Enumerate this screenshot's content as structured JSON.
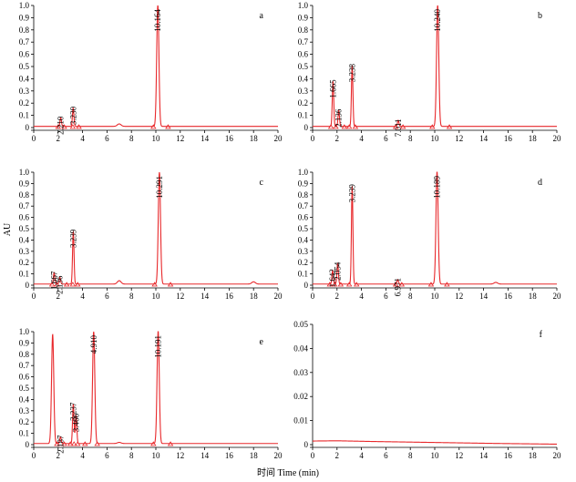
{
  "figure": {
    "ylabel": "AU",
    "xlabel": "时间 Time (min)"
  },
  "chart_data": [
    {
      "panel": "a",
      "type": "line",
      "xlim": [
        0,
        20
      ],
      "ylim": [
        0,
        1.0
      ],
      "xticks": [
        0,
        2,
        4,
        6,
        8,
        10,
        12,
        14,
        16,
        18,
        20
      ],
      "yticks": [
        0,
        0.1,
        0.2,
        0.3,
        0.4,
        0.5,
        0.6,
        0.7,
        0.8,
        0.9,
        1.0
      ],
      "ytick_labels": [
        "0",
        "0.1",
        "0.2",
        "0.3",
        "0.4",
        "0.5",
        "0.6",
        "0.7",
        "0.8",
        "0.9",
        "1.0"
      ],
      "baseline": 0.01,
      "peaks": [
        {
          "label": "2.210",
          "rt": 2.21,
          "height": 0.07
        },
        {
          "label": "3.230",
          "rt": 3.23,
          "height": 0.15
        },
        {
          "label": "10.164",
          "rt": 10.16,
          "height": 1.0
        }
      ],
      "small_bumps": [
        {
          "rt": 7.0,
          "height": 0.02
        }
      ],
      "markers": [
        2.0,
        2.5,
        3.2,
        3.7,
        9.8,
        11.0
      ]
    },
    {
      "panel": "b",
      "type": "line",
      "xlim": [
        0,
        20
      ],
      "ylim": [
        0,
        1.0
      ],
      "xticks": [
        0,
        2,
        4,
        6,
        8,
        10,
        12,
        14,
        16,
        18,
        20
      ],
      "yticks": [
        0,
        0.1,
        0.2,
        0.3,
        0.4,
        0.5,
        0.6,
        0.7,
        0.8,
        0.9,
        1.0
      ],
      "ytick_labels": [
        "0",
        "0.1",
        "0.2",
        "0.3",
        "0.4",
        "0.5",
        "0.6",
        "0.7",
        "0.8",
        "0.9",
        "1.0"
      ],
      "baseline": 0.01,
      "peaks": [
        {
          "label": "1.665",
          "rt": 1.67,
          "height": 0.37
        },
        {
          "label": "2.136",
          "rt": 2.14,
          "height": 0.13
        },
        {
          "label": "3.238",
          "rt": 3.24,
          "height": 0.5
        },
        {
          "label": "7.011",
          "rt": 7.01,
          "height": 0.05
        },
        {
          "label": "10.240",
          "rt": 10.24,
          "height": 1.0
        }
      ],
      "small_bumps": [],
      "markers": [
        1.5,
        1.9,
        2.6,
        3.0,
        3.5,
        6.8,
        7.4,
        9.8,
        11.2
      ]
    },
    {
      "panel": "c",
      "type": "line",
      "xlim": [
        0,
        20
      ],
      "ylim": [
        0,
        1.0
      ],
      "xticks": [
        0,
        2,
        4,
        6,
        8,
        10,
        12,
        14,
        16,
        18,
        20
      ],
      "yticks": [
        0,
        0.1,
        0.2,
        0.3,
        0.4,
        0.5,
        0.6,
        0.7,
        0.8,
        0.9,
        1.0
      ],
      "ytick_labels": [
        "0",
        "0.1",
        "0.2",
        "0.3",
        "0.4",
        "0.5",
        "0.6",
        "0.7",
        "0.8",
        "0.9",
        "1.0"
      ],
      "baseline": 0.01,
      "peaks": [
        {
          "label": "1.667",
          "rt": 1.67,
          "height": 0.1
        },
        {
          "label": "2.136",
          "rt": 2.14,
          "height": 0.06
        },
        {
          "label": "3.239",
          "rt": 3.24,
          "height": 0.47
        },
        {
          "label": "10.291",
          "rt": 10.29,
          "height": 1.0
        }
      ],
      "small_bumps": [
        {
          "rt": 7.0,
          "height": 0.03
        },
        {
          "rt": 18.0,
          "height": 0.02
        }
      ],
      "markers": [
        1.5,
        1.9,
        2.7,
        3.2,
        3.6,
        9.9,
        11.2
      ]
    },
    {
      "panel": "d",
      "type": "line",
      "xlim": [
        0,
        20
      ],
      "ylim": [
        0,
        1.0
      ],
      "xticks": [
        0,
        2,
        4,
        6,
        8,
        10,
        12,
        14,
        16,
        18,
        20
      ],
      "yticks": [
        0,
        0.1,
        0.2,
        0.3,
        0.4,
        0.5,
        0.6,
        0.7,
        0.8,
        0.9,
        1.0
      ],
      "ytick_labels": [
        "0",
        "0.1",
        "0.2",
        "0.3",
        "0.4",
        "0.5",
        "0.6",
        "0.7",
        "0.8",
        "0.9",
        "1.0"
      ],
      "baseline": 0.01,
      "peaks": [
        {
          "label": "1.642",
          "rt": 1.64,
          "height": 0.12
        },
        {
          "label": "2.054",
          "rt": 2.05,
          "height": 0.18
        },
        {
          "label": "3.239",
          "rt": 3.24,
          "height": 0.87
        },
        {
          "label": "6.971",
          "rt": 6.97,
          "height": 0.04
        },
        {
          "label": "10.189",
          "rt": 10.19,
          "height": 1.0
        }
      ],
      "small_bumps": [
        {
          "rt": 15.0,
          "height": 0.015
        }
      ],
      "markers": [
        1.4,
        1.8,
        2.3,
        3.0,
        3.6,
        6.8,
        7.3,
        9.7,
        11.0
      ]
    },
    {
      "panel": "e",
      "type": "line",
      "xlim": [
        0,
        20
      ],
      "ylim": [
        0,
        1.0
      ],
      "xticks": [
        0,
        2,
        4,
        6,
        8,
        10,
        12,
        14,
        16,
        18,
        20
      ],
      "yticks": [
        0,
        0.1,
        0.2,
        0.3,
        0.4,
        0.5,
        0.6,
        0.7,
        0.8,
        0.9,
        1.0
      ],
      "ytick_labels": [
        "0",
        "0.1",
        "0.2",
        "0.3",
        "0.4",
        "0.5",
        "0.6",
        "0.7",
        "0.8",
        "0.9",
        "1.0"
      ],
      "baseline": 0.01,
      "peaks": [
        {
          "label": "",
          "rt": 1.55,
          "height": 0.97
        },
        {
          "label": "2.187",
          "rt": 2.19,
          "height": 0.06
        },
        {
          "label": "3.237",
          "rt": 3.24,
          "height": 0.35
        },
        {
          "label": "3.466",
          "rt": 3.47,
          "height": 0.25
        },
        {
          "label": "4.910",
          "rt": 4.91,
          "height": 1.0
        },
        {
          "label": "10.191",
          "rt": 10.19,
          "height": 1.0
        }
      ],
      "small_bumps": [
        {
          "rt": 7.0,
          "height": 0.01
        }
      ],
      "markers": [
        1.9,
        2.5,
        3.0,
        3.3,
        3.6,
        4.2,
        5.2,
        9.8,
        11.2
      ]
    },
    {
      "panel": "f",
      "type": "line",
      "xlim": [
        0,
        20
      ],
      "ylim": [
        0,
        0.05
      ],
      "xticks": [
        0,
        2,
        4,
        6,
        8,
        10,
        12,
        14,
        16,
        18,
        20
      ],
      "yticks": [
        0,
        0.01,
        0.02,
        0.03,
        0.04,
        0.05
      ],
      "ytick_labels": [
        "0",
        "0.01",
        "0.02",
        "0.03",
        "0.04",
        "0.05"
      ],
      "baseline": 0.0,
      "peaks": [],
      "small_bumps": [],
      "markers": [],
      "drift": [
        [
          0,
          0.0015
        ],
        [
          2,
          0.0016
        ],
        [
          5,
          0.0013
        ],
        [
          10,
          0.0009
        ],
        [
          15,
          0.0005
        ],
        [
          20,
          0.0002
        ]
      ]
    }
  ]
}
